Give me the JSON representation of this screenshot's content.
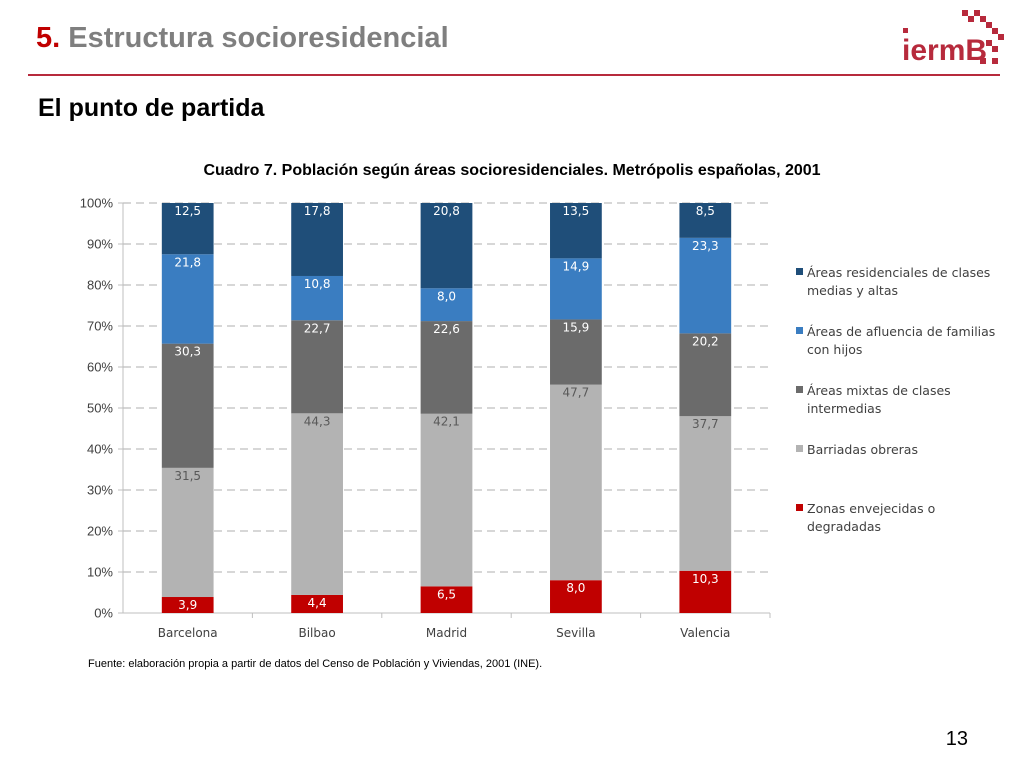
{
  "header": {
    "title_number": "5.",
    "title_text": "Estructura socioresidencial",
    "subtitle": "El punto de partida",
    "logo_text": "iermB"
  },
  "colors": {
    "accent_red": "#c00000",
    "rule": "#b72a3c",
    "title_grey": "#7f7f7f"
  },
  "chart_data": {
    "type": "bar",
    "stacked": true,
    "percent": true,
    "title": "Cuadro 7. Población según áreas socioresidenciales. Metrópolis españolas, 2001",
    "xlabel": "",
    "ylabel": "",
    "ylim": [
      0,
      100
    ],
    "yticks": [
      "0%",
      "10%",
      "20%",
      "30%",
      "40%",
      "50%",
      "60%",
      "70%",
      "80%",
      "90%",
      "100%"
    ],
    "grid": true,
    "legend_position": "right",
    "categories": [
      "Barcelona",
      "Bilbao",
      "Madrid",
      "Sevilla",
      "Valencia"
    ],
    "series": [
      {
        "name": "Zonas envejecidas o degradadas",
        "color": "#c00000",
        "label_color": "#ffffff",
        "values": [
          3.9,
          4.4,
          6.5,
          8.0,
          10.3
        ],
        "labels": [
          "3,9",
          "4,4",
          "6,5",
          "8,0",
          "10,3"
        ]
      },
      {
        "name": "Barriadas obreras",
        "color": "#b3b3b3",
        "label_color": "#595959",
        "values": [
          31.5,
          44.3,
          42.1,
          47.7,
          37.7
        ],
        "labels": [
          "31,5",
          "44,3",
          "42,1",
          "47,7",
          "37,7"
        ]
      },
      {
        "name": "Áreas mixtas de clases intermedias",
        "color": "#6b6b6b",
        "label_color": "#ffffff",
        "values": [
          30.3,
          22.7,
          22.6,
          15.9,
          20.2
        ],
        "labels": [
          "30,3",
          "22,7",
          "22,6",
          "15,9",
          "20,2"
        ]
      },
      {
        "name": "Áreas de afluencia de familias con hijos",
        "color": "#3a7dc1",
        "label_color": "#ffffff",
        "values": [
          21.8,
          10.8,
          8.0,
          14.9,
          23.3
        ],
        "labels": [
          "21,8",
          "10,8",
          "8,0",
          "14,9",
          "23,3"
        ]
      },
      {
        "name": "Áreas residenciales de clases medias y altas",
        "color": "#1f4e79",
        "label_color": "#ffffff",
        "values": [
          12.5,
          17.8,
          20.8,
          13.5,
          8.5
        ],
        "labels": [
          "12,5",
          "17,8",
          "20,8",
          "13,5",
          "8,5"
        ]
      }
    ]
  },
  "legend": {
    "items": [
      {
        "label": "Áreas residenciales de clases medias y altas",
        "color": "#1f4e79"
      },
      {
        "label": "Áreas de afluencia de familias con hijos",
        "color": "#3a7dc1"
      },
      {
        "label": "Áreas mixtas de clases intermedias",
        "color": "#6b6b6b"
      },
      {
        "label": "Barriadas obreras",
        "color": "#b3b3b3"
      },
      {
        "label": "Zonas envejecidas o degradadas",
        "color": "#c00000"
      }
    ]
  },
  "footer": {
    "source": "Fuente: elaboración propia a partir de datos del Censo de Población y Viviendas, 2001 (INE).",
    "page_number": "13"
  }
}
